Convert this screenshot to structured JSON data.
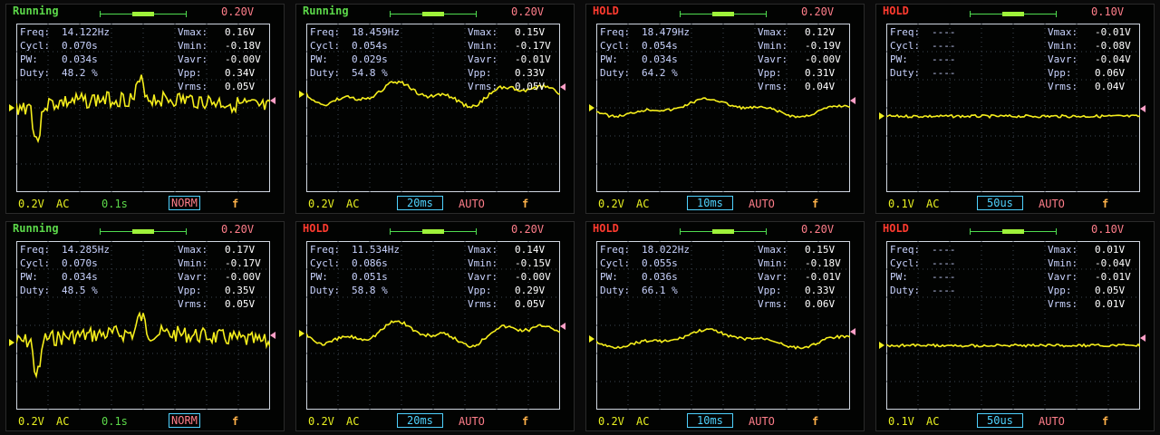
{
  "panels": [
    {
      "status": "Running",
      "status_kind": "running",
      "vdiv_top": "0.20V",
      "freq": "14.122Hz",
      "cycl": "0.070s",
      "pw": "0.034s",
      "duty": "48.2 %",
      "vmax": "0.16V",
      "vmin": "-0.18V",
      "vavr": "-0.00V",
      "vpp": "0.34V",
      "vrms": "0.05V",
      "vdiv": "0.2V",
      "coupling": "AC",
      "timebase": "0.1s",
      "timebase_boxed": false,
      "mode": "NORM",
      "mode_boxed": true,
      "edge": "f",
      "trace_kind": "noisy-dip",
      "trace_y": 0.5
    },
    {
      "status": "Running",
      "status_kind": "running",
      "vdiv_top": "0.20V",
      "freq": "18.459Hz",
      "cycl": "0.054s",
      "pw": "0.029s",
      "duty": "54.8 %",
      "vmax": "0.15V",
      "vmin": "-0.17V",
      "vavr": "-0.01V",
      "vpp": "0.33V",
      "vrms": "0.05V",
      "vdiv": "0.2V",
      "coupling": "AC",
      "timebase": "20ms",
      "timebase_boxed": true,
      "mode": "AUTO",
      "mode_boxed": false,
      "edge": "f",
      "trace_kind": "wave",
      "trace_y": 0.42
    },
    {
      "status": "HOLD",
      "status_kind": "hold",
      "vdiv_top": "0.20V",
      "freq": "18.479Hz",
      "cycl": "0.054s",
      "pw": "0.034s",
      "duty": "64.2 %",
      "vmax": "0.12V",
      "vmin": "-0.19V",
      "vavr": "-0.00V",
      "vpp": "0.31V",
      "vrms": "0.04V",
      "vdiv": "0.2V",
      "coupling": "AC",
      "timebase": "10ms",
      "timebase_boxed": true,
      "mode": "AUTO",
      "mode_boxed": false,
      "edge": "f",
      "trace_kind": "slow-wave",
      "trace_y": 0.5
    },
    {
      "status": "HOLD",
      "status_kind": "hold",
      "vdiv_top": "0.10V",
      "freq": "----",
      "cycl": "----",
      "pw": "----",
      "duty": "----",
      "vmax": "-0.01V",
      "vmin": "-0.08V",
      "vavr": "-0.04V",
      "vpp": "0.06V",
      "vrms": "0.04V",
      "vdiv": "0.1V",
      "coupling": "AC",
      "timebase": "50us",
      "timebase_boxed": true,
      "mode": "AUTO",
      "mode_boxed": false,
      "edge": "f",
      "trace_kind": "flat",
      "trace_y": 0.55
    },
    {
      "status": "Running",
      "status_kind": "running",
      "vdiv_top": "0.20V",
      "freq": "14.285Hz",
      "cycl": "0.070s",
      "pw": "0.034s",
      "duty": "48.5 %",
      "vmax": "0.17V",
      "vmin": "-0.17V",
      "vavr": "-0.00V",
      "vpp": "0.35V",
      "vrms": "0.05V",
      "vdiv": "0.2V",
      "coupling": "AC",
      "timebase": "0.1s",
      "timebase_boxed": false,
      "mode": "NORM",
      "mode_boxed": true,
      "edge": "f",
      "trace_kind": "noisy-dip",
      "trace_y": 0.6
    },
    {
      "status": "HOLD",
      "status_kind": "hold",
      "vdiv_top": "0.20V",
      "freq": "11.534Hz",
      "cycl": "0.086s",
      "pw": "0.051s",
      "duty": "58.8 %",
      "vmax": "0.14V",
      "vmin": "-0.15V",
      "vavr": "-0.00V",
      "vpp": "0.29V",
      "vrms": "0.05V",
      "vdiv": "0.2V",
      "coupling": "AC",
      "timebase": "20ms",
      "timebase_boxed": true,
      "mode": "AUTO",
      "mode_boxed": false,
      "edge": "f",
      "trace_kind": "wave",
      "trace_y": 0.55
    },
    {
      "status": "HOLD",
      "status_kind": "hold",
      "vdiv_top": "0.20V",
      "freq": "18.022Hz",
      "cycl": "0.055s",
      "pw": "0.036s",
      "duty": "66.1 %",
      "vmax": "0.15V",
      "vmin": "-0.18V",
      "vavr": "-0.01V",
      "vpp": "0.33V",
      "vrms": "0.06V",
      "vdiv": "0.2V",
      "coupling": "AC",
      "timebase": "10ms",
      "timebase_boxed": true,
      "mode": "AUTO",
      "mode_boxed": false,
      "edge": "f",
      "trace_kind": "slow-wave",
      "trace_y": 0.58
    },
    {
      "status": "HOLD",
      "status_kind": "hold",
      "vdiv_top": "0.10V",
      "freq": "----",
      "cycl": "----",
      "pw": "----",
      "duty": "----",
      "vmax": "0.01V",
      "vmin": "-0.04V",
      "vavr": "-0.01V",
      "vpp": "0.05V",
      "vrms": "0.01V",
      "vdiv": "0.1V",
      "coupling": "AC",
      "timebase": "50us",
      "timebase_boxed": true,
      "mode": "AUTO",
      "mode_boxed": false,
      "edge": "f",
      "trace_kind": "flat",
      "trace_y": 0.62
    }
  ],
  "labels": {
    "freq": "Freq:",
    "cycl": "Cycl:",
    "pw": "PW:",
    "duty": "Duty:",
    "vmax": "Vmax:",
    "vmin": "Vmin:",
    "vavr": "Vavr:",
    "vpp": "Vpp:",
    "vrms": "Vrms:"
  },
  "colors": {
    "trace": "#f5ee1c",
    "running": "#5cd94a",
    "hold": "#ff3b2f",
    "grid": "#cfd6e0",
    "readout": "#c9d3ff",
    "accent_box": "#4fd2ff"
  }
}
